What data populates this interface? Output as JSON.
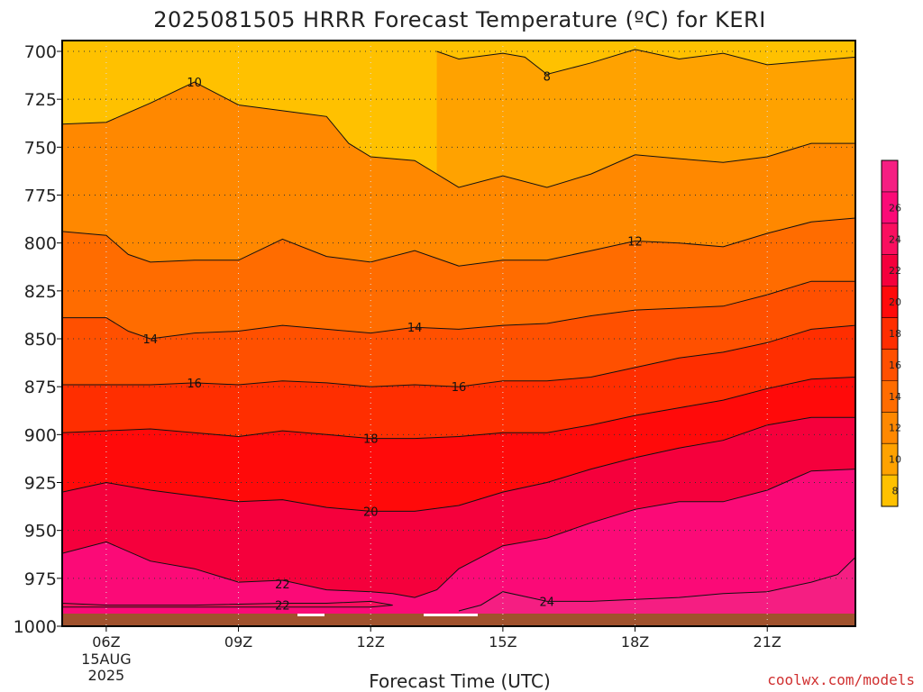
{
  "title": "2025081505 HRRR Forecast Temperature (ºC) for KERI",
  "credit": "coolwx.com/models",
  "chart_data": {
    "type": "heatmap",
    "title": "2025081505 HRRR Forecast Temperature (ºC) for KERI",
    "xlabel": "Forecast Time (UTC)",
    "ylabel": "",
    "x_range_hours_utc": [
      5,
      23
    ],
    "y_range_hpa": [
      1000,
      700
    ],
    "y_axis_inverted": true,
    "y_ticks": [
      "700",
      "725",
      "750",
      "775",
      "800",
      "825",
      "850",
      "875",
      "900",
      "925",
      "950",
      "975",
      "1000"
    ],
    "x_ticks": [
      {
        "label": "06Z",
        "hour": 6,
        "sub": [
          "15AUG",
          "2025"
        ]
      },
      {
        "label": "09Z",
        "hour": 9
      },
      {
        "label": "12Z",
        "hour": 12
      },
      {
        "label": "15Z",
        "hour": 15
      },
      {
        "label": "18Z",
        "hour": 18
      },
      {
        "label": "21Z",
        "hour": 21
      }
    ],
    "grid": true,
    "colorbar": {
      "ticks": [
        "8",
        "10",
        "12",
        "14",
        "16",
        "18",
        "20",
        "22",
        "24",
        "26"
      ],
      "colors": [
        "#ffc100",
        "#ffa200",
        "#ff8800",
        "#ff6c00",
        "#ff5000",
        "#ff2e00",
        "#ff0a0a",
        "#f5003c",
        "#fa0f5f",
        "#fb0a77",
        "#f51e82"
      ]
    },
    "ground_color": "#a0522d",
    "contours": [
      {
        "level": 8,
        "labels": [
          {
            "text": "8",
            "hour": 16.0,
            "hpa": 713
          }
        ],
        "points": [
          [
            13.5,
            700
          ],
          [
            14.0,
            704
          ],
          [
            15.0,
            701
          ],
          [
            15.5,
            703
          ],
          [
            16.0,
            712
          ],
          [
            17.0,
            706
          ],
          [
            18.0,
            699
          ],
          [
            19.0,
            704
          ],
          [
            20.0,
            701
          ],
          [
            21.0,
            707
          ],
          [
            22.0,
            705
          ],
          [
            23.0,
            703
          ]
        ]
      },
      {
        "level": 10,
        "labels": [
          {
            "text": "10",
            "hour": 8.0,
            "hpa": 716
          }
        ],
        "points": [
          [
            5.0,
            738
          ],
          [
            6.0,
            737
          ],
          [
            7.0,
            727
          ],
          [
            8.0,
            716
          ],
          [
            9.0,
            728
          ],
          [
            10.0,
            731
          ],
          [
            11.0,
            734
          ],
          [
            11.5,
            748
          ],
          [
            12.0,
            755
          ],
          [
            13.0,
            757
          ],
          [
            14.0,
            771
          ],
          [
            15.0,
            765
          ],
          [
            16.0,
            771
          ],
          [
            17.0,
            764
          ],
          [
            18.0,
            754
          ],
          [
            19.0,
            756
          ],
          [
            20.0,
            758
          ],
          [
            21.0,
            755
          ],
          [
            22.0,
            748
          ],
          [
            23.0,
            748
          ]
        ]
      },
      {
        "level": 12,
        "labels": [
          {
            "text": "12",
            "hour": 18.0,
            "hpa": 799
          }
        ],
        "points": [
          [
            5.0,
            794
          ],
          [
            6.0,
            796
          ],
          [
            6.5,
            806
          ],
          [
            7.0,
            810
          ],
          [
            8.0,
            809
          ],
          [
            9.0,
            809
          ],
          [
            10.0,
            798
          ],
          [
            11.0,
            807
          ],
          [
            12.0,
            810
          ],
          [
            13.0,
            804
          ],
          [
            14.0,
            812
          ],
          [
            15.0,
            809
          ],
          [
            16.0,
            809
          ],
          [
            17.0,
            804
          ],
          [
            18.0,
            799
          ],
          [
            19.0,
            800
          ],
          [
            20.0,
            802
          ],
          [
            21.0,
            795
          ],
          [
            22.0,
            789
          ],
          [
            23.0,
            787
          ]
        ]
      },
      {
        "level": 14,
        "labels": [
          {
            "text": "14",
            "hour": 7.0,
            "hpa": 850
          },
          {
            "text": "14",
            "hour": 13.0,
            "hpa": 844
          }
        ],
        "points": [
          [
            5.0,
            839
          ],
          [
            6.0,
            839
          ],
          [
            6.5,
            846
          ],
          [
            7.0,
            850
          ],
          [
            8.0,
            847
          ],
          [
            9.0,
            846
          ],
          [
            10.0,
            843
          ],
          [
            11.0,
            845
          ],
          [
            12.0,
            847
          ],
          [
            13.0,
            844
          ],
          [
            14.0,
            845
          ],
          [
            15.0,
            843
          ],
          [
            16.0,
            842
          ],
          [
            17.0,
            838
          ],
          [
            18.0,
            835
          ],
          [
            19.0,
            834
          ],
          [
            20.0,
            833
          ],
          [
            21.0,
            827
          ],
          [
            22.0,
            820
          ],
          [
            23.0,
            820
          ]
        ]
      },
      {
        "level": 16,
        "labels": [
          {
            "text": "16",
            "hour": 8.0,
            "hpa": 873
          },
          {
            "text": "16",
            "hour": 14.0,
            "hpa": 875
          }
        ],
        "points": [
          [
            5.0,
            874
          ],
          [
            6.0,
            874
          ],
          [
            7.0,
            874
          ],
          [
            8.0,
            873
          ],
          [
            9.0,
            874
          ],
          [
            10.0,
            872
          ],
          [
            11.0,
            873
          ],
          [
            12.0,
            875
          ],
          [
            13.0,
            874
          ],
          [
            14.0,
            875
          ],
          [
            15.0,
            872
          ],
          [
            16.0,
            872
          ],
          [
            17.0,
            870
          ],
          [
            18.0,
            865
          ],
          [
            19.0,
            860
          ],
          [
            20.0,
            857
          ],
          [
            21.0,
            852
          ],
          [
            22.0,
            845
          ],
          [
            23.0,
            843
          ]
        ]
      },
      {
        "level": 18,
        "labels": [
          {
            "text": "18",
            "hour": 12.0,
            "hpa": 902
          }
        ],
        "points": [
          [
            5.0,
            899
          ],
          [
            6.0,
            898
          ],
          [
            7.0,
            897
          ],
          [
            8.0,
            899
          ],
          [
            9.0,
            901
          ],
          [
            10.0,
            898
          ],
          [
            11.0,
            900
          ],
          [
            12.0,
            902
          ],
          [
            13.0,
            902
          ],
          [
            14.0,
            901
          ],
          [
            15.0,
            899
          ],
          [
            16.0,
            899
          ],
          [
            17.0,
            895
          ],
          [
            18.0,
            890
          ],
          [
            19.0,
            886
          ],
          [
            20.0,
            882
          ],
          [
            21.0,
            876
          ],
          [
            22.0,
            871
          ],
          [
            23.0,
            870
          ]
        ]
      },
      {
        "level": 20,
        "labels": [
          {
            "text": "20",
            "hour": 12.0,
            "hpa": 940
          }
        ],
        "points": [
          [
            5.0,
            930
          ],
          [
            6.0,
            925
          ],
          [
            7.0,
            929
          ],
          [
            8.0,
            932
          ],
          [
            9.0,
            935
          ],
          [
            10.0,
            934
          ],
          [
            11.0,
            938
          ],
          [
            12.0,
            940
          ],
          [
            13.0,
            940
          ],
          [
            14.0,
            937
          ],
          [
            15.0,
            930
          ],
          [
            16.0,
            925
          ],
          [
            17.0,
            918
          ],
          [
            18.0,
            912
          ],
          [
            19.0,
            907
          ],
          [
            20.0,
            903
          ],
          [
            21.0,
            895
          ],
          [
            22.0,
            891
          ],
          [
            23.0,
            891
          ]
        ]
      },
      {
        "level": 22,
        "labels": [
          {
            "text": "22",
            "hour": 10.0,
            "hpa": 978
          }
        ],
        "points": [
          [
            5.0,
            962
          ],
          [
            6.0,
            956
          ],
          [
            7.0,
            966
          ],
          [
            8.0,
            970
          ],
          [
            9.0,
            977
          ],
          [
            10.0,
            976
          ],
          [
            11.0,
            981
          ],
          [
            12.0,
            982
          ],
          [
            12.5,
            983
          ],
          [
            13.0,
            985
          ],
          [
            13.5,
            981
          ],
          [
            14.0,
            970
          ],
          [
            15.0,
            958
          ],
          [
            16.0,
            954
          ],
          [
            17.0,
            946
          ],
          [
            18.0,
            939
          ],
          [
            19.0,
            935
          ],
          [
            20.0,
            935
          ],
          [
            21.0,
            929
          ],
          [
            22.0,
            919
          ],
          [
            23.0,
            918
          ]
        ]
      },
      {
        "level": 22,
        "labels": [
          {
            "text": "22",
            "hour": 10.0,
            "hpa": 989
          }
        ],
        "points": [
          [
            5.0,
            988
          ],
          [
            6.0,
            989
          ],
          [
            8.0,
            989
          ],
          [
            10.0,
            988
          ],
          [
            11.0,
            988
          ],
          [
            12.0,
            987
          ],
          [
            12.5,
            989
          ],
          [
            12.0,
            990
          ],
          [
            11.0,
            990
          ],
          [
            10.0,
            990
          ],
          [
            8.0,
            990
          ],
          [
            6.0,
            990
          ],
          [
            5.0,
            990
          ]
        ]
      },
      {
        "level": 24,
        "labels": [
          {
            "text": "24",
            "hour": 16.0,
            "hpa": 987
          }
        ],
        "points": [
          [
            14.0,
            992
          ],
          [
            14.5,
            989
          ],
          [
            15.0,
            982
          ],
          [
            16.0,
            987
          ],
          [
            17.0,
            987
          ],
          [
            18.0,
            986
          ],
          [
            19.0,
            985
          ],
          [
            20.0,
            983
          ],
          [
            21.0,
            982
          ],
          [
            22.0,
            977
          ],
          [
            22.6,
            973
          ],
          [
            23.0,
            964
          ]
        ]
      }
    ]
  }
}
